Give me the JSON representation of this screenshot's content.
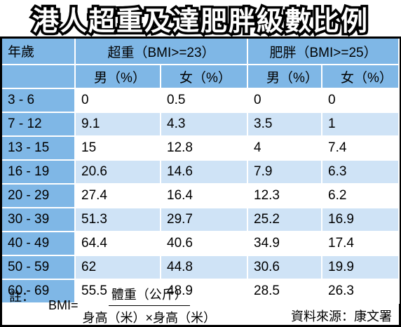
{
  "title": "港人超重及達肥胖級數比例",
  "header": {
    "age": "年歲",
    "overweight": "超重（BMI>=23）",
    "obese": "肥胖（BMI>=25）",
    "male": "男（%）",
    "female": "女（%）"
  },
  "rows": [
    {
      "age": "3 - 6",
      "ow_m": "0",
      "ow_f": "0.5",
      "ob_m": "0",
      "ob_f": "0"
    },
    {
      "age": "7 - 12",
      "ow_m": "9.1",
      "ow_f": "4.3",
      "ob_m": "3.5",
      "ob_f": "1"
    },
    {
      "age": "13 - 15",
      "ow_m": "15",
      "ow_f": "12.8",
      "ob_m": "4",
      "ob_f": "7.4"
    },
    {
      "age": "16 - 19",
      "ow_m": "20.6",
      "ow_f": "14.6",
      "ob_m": "7.9",
      "ob_f": "6.3"
    },
    {
      "age": "20 - 29",
      "ow_m": "27.4",
      "ow_f": "16.4",
      "ob_m": "12.3",
      "ob_f": "6.2"
    },
    {
      "age": "30 - 39",
      "ow_m": "51.3",
      "ow_f": "29.7",
      "ob_m": "25.2",
      "ob_f": "16.9"
    },
    {
      "age": "40 - 49",
      "ow_m": "64.4",
      "ow_f": "40.6",
      "ob_m": "34.9",
      "ob_f": "17.4"
    },
    {
      "age": "50 - 59",
      "ow_m": "62",
      "ow_f": "44.8",
      "ob_m": "30.6",
      "ob_f": "19.9"
    },
    {
      "age": "60 - 69",
      "ow_m": "55.5",
      "ow_f": "48.9",
      "ob_m": "28.5",
      "ob_f": "26.3"
    }
  ],
  "note": {
    "label": "註：",
    "bmi": "BMI=",
    "numerator": "體重（公斤）",
    "denominator": "身高（米）×身高（米）"
  },
  "source": "資料來源：康文署",
  "colors": {
    "header_blue": "#7fb7e6",
    "row_light_blue": "#cfe3f6",
    "row_white": "#ffffff",
    "border": "#000000"
  }
}
